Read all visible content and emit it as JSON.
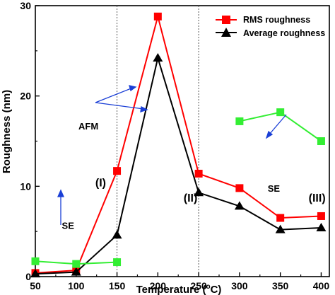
{
  "chart_data": {
    "type": "line",
    "xlabel": "Temperature (",
    "xlabel_sup": "o",
    "xlabel_tail": "C)",
    "ylabel": "Roughness (nm)",
    "xlim": [
      50,
      410
    ],
    "ylim": [
      0,
      30
    ],
    "xticks": [
      50,
      100,
      150,
      200,
      250,
      300,
      350,
      400
    ],
    "yticks": [
      0,
      10,
      20,
      30
    ],
    "vlines": [
      150,
      250
    ],
    "grid": false,
    "legend_position": "top-right",
    "series": [
      {
        "name": "RMS roughness",
        "color": "#ff0000",
        "marker": "square",
        "x": [
          50,
          100,
          150,
          200,
          250,
          300,
          350,
          400
        ],
        "y": [
          0.4,
          0.7,
          11.7,
          28.8,
          11.4,
          9.8,
          6.5,
          6.7
        ]
      },
      {
        "name": "Average roughness",
        "color": "#000000",
        "marker": "triangle",
        "x": [
          50,
          100,
          150,
          200,
          250,
          300,
          350,
          400
        ],
        "y": [
          0.3,
          0.5,
          4.6,
          24.2,
          9.3,
          7.8,
          5.2,
          5.4
        ]
      },
      {
        "name": "",
        "color": "#33ee33",
        "marker": "square",
        "x": [
          50,
          100,
          150
        ],
        "y": [
          1.7,
          1.4,
          1.6
        ]
      },
      {
        "name": "",
        "color": "#33ee33",
        "marker": "square",
        "x": [
          300,
          350,
          400
        ],
        "y": [
          17.2,
          18.2,
          15.0
        ]
      }
    ],
    "annotations": [
      {
        "text": "AFM",
        "x": 115,
        "y": 16.3
      },
      {
        "text": "(I)",
        "x": 130,
        "y": 10.0
      },
      {
        "text": "(II)",
        "x": 240,
        "y": 8.3
      },
      {
        "text": "SE",
        "x": 342,
        "y": 9.4
      },
      {
        "text": "(III)",
        "x": 395,
        "y": 8.3
      },
      {
        "text": "SE",
        "x": 90,
        "y": 5.3
      }
    ]
  }
}
